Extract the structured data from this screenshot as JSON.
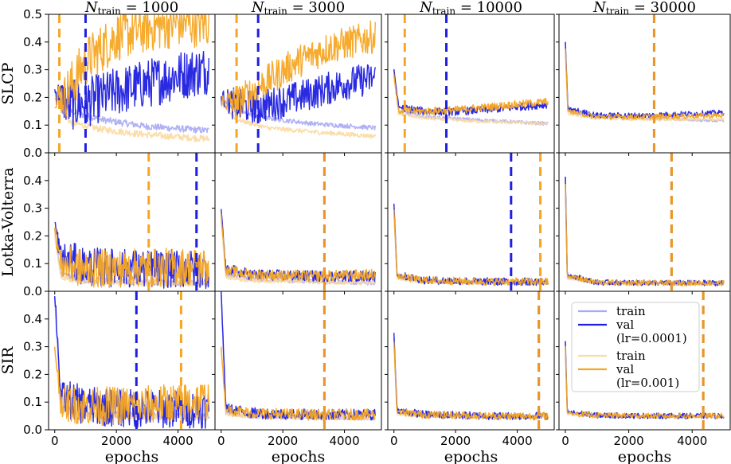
{
  "chart_data": {
    "type": "line",
    "layout": "3x4 grid of subplots",
    "columns": [
      {
        "title_prefix": "N",
        "title_sub": "train",
        "title_eq": "= 1000",
        "n_train": 1000
      },
      {
        "title_prefix": "N",
        "title_sub": "train",
        "title_eq": "= 3000",
        "n_train": 3000
      },
      {
        "title_prefix": "N",
        "title_sub": "train",
        "title_eq": "= 10000",
        "n_train": 10000
      },
      {
        "title_prefix": "N",
        "title_sub": "train",
        "title_eq": "= 30000",
        "n_train": 30000
      }
    ],
    "rows": [
      {
        "label": "SLCP",
        "ylim": [
          0,
          0.5
        ],
        "yticks": [
          "0.0",
          "0.1",
          "0.2",
          "0.3",
          "0.4",
          "0.5"
        ]
      },
      {
        "label": "Lotka-Volterra",
        "ylim": [
          0,
          0.5
        ],
        "yticks": [
          "0.0",
          "0.1",
          "0.2",
          "0.3",
          "0.4"
        ]
      },
      {
        "label": "SIR",
        "ylim": [
          0,
          0.5
        ],
        "yticks": [
          "0.0",
          "0.1",
          "0.2",
          "0.3",
          "0.4"
        ]
      }
    ],
    "xlim": [
      -200,
      5200
    ],
    "xticks": [
      "0",
      "2000",
      "4000"
    ],
    "xtick_values": [
      0,
      2000,
      4000
    ],
    "xlabel": "epochs",
    "colors": {
      "train_lr1": "#a9a9f5",
      "val_lr1": "#1f1fe0",
      "train_lr2": "#fbd9a0",
      "val_lr2": "#f5a623",
      "overlap": "#e8962b"
    },
    "legend": {
      "placement": "inside bottom-right panel (SIR, N_train = 30000)",
      "entries": [
        {
          "label": "train",
          "color": "#a9a9f5"
        },
        {
          "label": "val",
          "color": "#1f1fe0"
        },
        {
          "label": "(lr=0.0001)"
        },
        {
          "label": "train",
          "color": "#fbd9a0"
        },
        {
          "label": "val",
          "color": "#f5a623"
        },
        {
          "label": "(lr=0.001)"
        }
      ]
    },
    "panels": [
      {
        "row": 0,
        "col": 0,
        "vline_lr1": 1000,
        "vline_lr2": 150,
        "train_lr1": [
          [
            0,
            0.22
          ],
          [
            500,
            0.15
          ],
          [
            1500,
            0.12
          ],
          [
            3000,
            0.095
          ],
          [
            5000,
            0.08
          ]
        ],
        "val_lr1": [
          [
            0,
            0.22
          ],
          [
            500,
            0.17
          ],
          [
            1000,
            0.18
          ],
          [
            2000,
            0.22
          ],
          [
            3000,
            0.25
          ],
          [
            4000,
            0.28
          ],
          [
            5000,
            0.3
          ]
        ],
        "train_lr2": [
          [
            0,
            0.2
          ],
          [
            500,
            0.11
          ],
          [
            1500,
            0.085
          ],
          [
            3000,
            0.065
          ],
          [
            5000,
            0.05
          ]
        ],
        "val_lr2": [
          [
            0,
            0.2
          ],
          [
            300,
            0.2
          ],
          [
            1000,
            0.33
          ],
          [
            2000,
            0.42
          ],
          [
            3000,
            0.45
          ],
          [
            4000,
            0.47
          ],
          [
            5000,
            0.47
          ]
        ]
      },
      {
        "row": 0,
        "col": 1,
        "vline_lr1": 1200,
        "vline_lr2": 500,
        "train_lr1": [
          [
            0,
            0.2
          ],
          [
            500,
            0.15
          ],
          [
            1500,
            0.125
          ],
          [
            3000,
            0.105
          ],
          [
            5000,
            0.09
          ]
        ],
        "val_lr1": [
          [
            0,
            0.2
          ],
          [
            500,
            0.17
          ],
          [
            1200,
            0.165
          ],
          [
            2500,
            0.2
          ],
          [
            4000,
            0.25
          ],
          [
            5000,
            0.27
          ]
        ],
        "train_lr2": [
          [
            0,
            0.18
          ],
          [
            500,
            0.12
          ],
          [
            1500,
            0.09
          ],
          [
            3000,
            0.075
          ],
          [
            5000,
            0.06
          ]
        ],
        "val_lr2": [
          [
            0,
            0.19
          ],
          [
            500,
            0.18
          ],
          [
            1500,
            0.26
          ],
          [
            2500,
            0.33
          ],
          [
            3500,
            0.38
          ],
          [
            5000,
            0.42
          ]
        ]
      },
      {
        "row": 0,
        "col": 2,
        "vline_lr1": 1700,
        "vline_lr2": 350,
        "train_lr1": [
          [
            0,
            0.3
          ],
          [
            150,
            0.15
          ],
          [
            1000,
            0.13
          ],
          [
            2500,
            0.12
          ],
          [
            5000,
            0.105
          ]
        ],
        "val_lr1": [
          [
            0,
            0.3
          ],
          [
            150,
            0.165
          ],
          [
            1000,
            0.15
          ],
          [
            2000,
            0.148
          ],
          [
            3500,
            0.16
          ],
          [
            5000,
            0.175
          ]
        ],
        "train_lr2": [
          [
            0,
            0.28
          ],
          [
            150,
            0.14
          ],
          [
            1000,
            0.125
          ],
          [
            2500,
            0.115
          ],
          [
            5000,
            0.105
          ]
        ],
        "val_lr2": [
          [
            0,
            0.28
          ],
          [
            150,
            0.15
          ],
          [
            1000,
            0.15
          ],
          [
            2000,
            0.155
          ],
          [
            3500,
            0.17
          ],
          [
            5000,
            0.185
          ]
        ]
      },
      {
        "row": 0,
        "col": 3,
        "vline_lr1": 2800,
        "vline_lr2": 2800,
        "train_lr1": [
          [
            0,
            0.4
          ],
          [
            80,
            0.15
          ],
          [
            1000,
            0.13
          ],
          [
            2500,
            0.125
          ],
          [
            5000,
            0.115
          ]
        ],
        "val_lr1": [
          [
            0,
            0.4
          ],
          [
            80,
            0.16
          ],
          [
            1000,
            0.135
          ],
          [
            2500,
            0.135
          ],
          [
            5000,
            0.145
          ]
        ],
        "train_lr2": [
          [
            0,
            0.38
          ],
          [
            80,
            0.14
          ],
          [
            1000,
            0.125
          ],
          [
            2500,
            0.12
          ],
          [
            5000,
            0.12
          ]
        ],
        "val_lr2": [
          [
            0,
            0.38
          ],
          [
            80,
            0.15
          ],
          [
            1000,
            0.13
          ],
          [
            2500,
            0.13
          ],
          [
            5000,
            0.135
          ]
        ]
      },
      {
        "row": 1,
        "col": 0,
        "vline_lr1": 4600,
        "vline_lr2": 3050,
        "train_lr1": [
          [
            0,
            0.22
          ],
          [
            200,
            0.06
          ],
          [
            1000,
            0.04
          ],
          [
            3000,
            0.035
          ],
          [
            5000,
            0.03
          ]
        ],
        "val_lr1": [
          [
            0,
            0.25
          ],
          [
            200,
            0.12
          ],
          [
            1000,
            0.09
          ],
          [
            3000,
            0.08
          ],
          [
            5000,
            0.08
          ]
        ],
        "train_lr2": [
          [
            0,
            0.2
          ],
          [
            200,
            0.05
          ],
          [
            1000,
            0.035
          ],
          [
            3000,
            0.03
          ],
          [
            5000,
            0.03
          ]
        ],
        "val_lr2": [
          [
            0,
            0.22
          ],
          [
            200,
            0.1
          ],
          [
            1000,
            0.08
          ],
          [
            3000,
            0.085
          ],
          [
            5000,
            0.09
          ]
        ]
      },
      {
        "row": 1,
        "col": 1,
        "vline_lr1": 3350,
        "vline_lr2": 3350,
        "train_lr1": [
          [
            0,
            0.28
          ],
          [
            150,
            0.06
          ],
          [
            1000,
            0.045
          ],
          [
            3000,
            0.035
          ],
          [
            5000,
            0.03
          ]
        ],
        "val_lr1": [
          [
            0,
            0.3
          ],
          [
            150,
            0.08
          ],
          [
            1000,
            0.06
          ],
          [
            3000,
            0.055
          ],
          [
            5000,
            0.055
          ]
        ],
        "train_lr2": [
          [
            0,
            0.26
          ],
          [
            150,
            0.05
          ],
          [
            1000,
            0.04
          ],
          [
            3000,
            0.035
          ],
          [
            5000,
            0.03
          ]
        ],
        "val_lr2": [
          [
            0,
            0.28
          ],
          [
            150,
            0.075
          ],
          [
            1000,
            0.06
          ],
          [
            3000,
            0.055
          ],
          [
            5000,
            0.06
          ]
        ]
      },
      {
        "row": 1,
        "col": 2,
        "vline_lr1": 3800,
        "vline_lr2": 4750,
        "train_lr1": [
          [
            0,
            0.3
          ],
          [
            100,
            0.05
          ],
          [
            1000,
            0.035
          ],
          [
            3000,
            0.03
          ],
          [
            5000,
            0.03
          ]
        ],
        "val_lr1": [
          [
            0,
            0.32
          ],
          [
            100,
            0.06
          ],
          [
            1000,
            0.04
          ],
          [
            3000,
            0.035
          ],
          [
            5000,
            0.035
          ]
        ],
        "train_lr2": [
          [
            0,
            0.28
          ],
          [
            100,
            0.045
          ],
          [
            1000,
            0.035
          ],
          [
            3000,
            0.03
          ],
          [
            5000,
            0.03
          ]
        ],
        "val_lr2": [
          [
            0,
            0.3
          ],
          [
            100,
            0.055
          ],
          [
            1000,
            0.04
          ],
          [
            3000,
            0.035
          ],
          [
            5000,
            0.035
          ]
        ]
      },
      {
        "row": 1,
        "col": 3,
        "vline_lr1": 3350,
        "vline_lr2": 3350,
        "train_lr1": [
          [
            0,
            0.41
          ],
          [
            60,
            0.05
          ],
          [
            1000,
            0.03
          ],
          [
            3000,
            0.028
          ],
          [
            5000,
            0.027
          ]
        ],
        "val_lr1": [
          [
            0,
            0.41
          ],
          [
            60,
            0.06
          ],
          [
            1000,
            0.032
          ],
          [
            3000,
            0.03
          ],
          [
            5000,
            0.03
          ]
        ],
        "train_lr2": [
          [
            0,
            0.39
          ],
          [
            60,
            0.045
          ],
          [
            1000,
            0.03
          ],
          [
            3000,
            0.028
          ],
          [
            5000,
            0.027
          ]
        ],
        "val_lr2": [
          [
            0,
            0.39
          ],
          [
            60,
            0.055
          ],
          [
            1000,
            0.032
          ],
          [
            3000,
            0.03
          ],
          [
            5000,
            0.03
          ]
        ]
      },
      {
        "row": 2,
        "col": 0,
        "vline_lr1": 2650,
        "vline_lr2": 4100,
        "train_lr1": [
          [
            0,
            0.48
          ],
          [
            200,
            0.08
          ],
          [
            1000,
            0.06
          ],
          [
            3000,
            0.05
          ],
          [
            5000,
            0.045
          ]
        ],
        "val_lr1": [
          [
            0,
            0.5
          ],
          [
            200,
            0.12
          ],
          [
            1000,
            0.085
          ],
          [
            3000,
            0.075
          ],
          [
            5000,
            0.075
          ]
        ],
        "train_lr2": [
          [
            0,
            0.3
          ],
          [
            200,
            0.07
          ],
          [
            1000,
            0.055
          ],
          [
            3000,
            0.05
          ],
          [
            5000,
            0.045
          ]
        ],
        "val_lr2": [
          [
            0,
            0.3
          ],
          [
            200,
            0.1
          ],
          [
            1000,
            0.085
          ],
          [
            3000,
            0.09
          ],
          [
            5000,
            0.11
          ]
        ]
      },
      {
        "row": 2,
        "col": 1,
        "vline_lr1": 3350,
        "vline_lr2": 3350,
        "train_lr1": [
          [
            0,
            0.5
          ],
          [
            150,
            0.06
          ],
          [
            1000,
            0.05
          ],
          [
            3000,
            0.045
          ],
          [
            5000,
            0.042
          ]
        ],
        "val_lr1": [
          [
            0,
            0.5
          ],
          [
            150,
            0.08
          ],
          [
            1000,
            0.06
          ],
          [
            3000,
            0.055
          ],
          [
            5000,
            0.055
          ]
        ],
        "train_lr2": [
          [
            0,
            0.3
          ],
          [
            150,
            0.055
          ],
          [
            1000,
            0.048
          ],
          [
            3000,
            0.044
          ],
          [
            5000,
            0.042
          ]
        ],
        "val_lr2": [
          [
            0,
            0.3
          ],
          [
            150,
            0.075
          ],
          [
            1000,
            0.06
          ],
          [
            3000,
            0.055
          ],
          [
            5000,
            0.055
          ]
        ]
      },
      {
        "row": 2,
        "col": 2,
        "vline_lr1": 4700,
        "vline_lr2": 4700,
        "train_lr1": [
          [
            0,
            0.33
          ],
          [
            100,
            0.06
          ],
          [
            1000,
            0.05
          ],
          [
            3000,
            0.048
          ],
          [
            5000,
            0.047
          ]
        ],
        "val_lr1": [
          [
            0,
            0.35
          ],
          [
            100,
            0.07
          ],
          [
            1000,
            0.055
          ],
          [
            3000,
            0.05
          ],
          [
            5000,
            0.05
          ]
        ],
        "train_lr2": [
          [
            0,
            0.3
          ],
          [
            100,
            0.055
          ],
          [
            1000,
            0.05
          ],
          [
            3000,
            0.048
          ],
          [
            5000,
            0.047
          ]
        ],
        "val_lr2": [
          [
            0,
            0.32
          ],
          [
            100,
            0.065
          ],
          [
            1000,
            0.055
          ],
          [
            3000,
            0.05
          ],
          [
            5000,
            0.05
          ]
        ]
      },
      {
        "row": 2,
        "col": 3,
        "vline_lr1": 4350,
        "vline_lr2": 4350,
        "train_lr1": [
          [
            0,
            0.32
          ],
          [
            60,
            0.06
          ],
          [
            1000,
            0.05
          ],
          [
            3000,
            0.048
          ],
          [
            5000,
            0.048
          ]
        ],
        "val_lr1": [
          [
            0,
            0.32
          ],
          [
            60,
            0.065
          ],
          [
            1000,
            0.052
          ],
          [
            3000,
            0.05
          ],
          [
            5000,
            0.05
          ]
        ],
        "train_lr2": [
          [
            0,
            0.3
          ],
          [
            60,
            0.055
          ],
          [
            1000,
            0.05
          ],
          [
            3000,
            0.048
          ],
          [
            5000,
            0.048
          ]
        ],
        "val_lr2": [
          [
            0,
            0.3
          ],
          [
            60,
            0.06
          ],
          [
            1000,
            0.052
          ],
          [
            3000,
            0.05
          ],
          [
            5000,
            0.05
          ]
        ]
      }
    ]
  }
}
